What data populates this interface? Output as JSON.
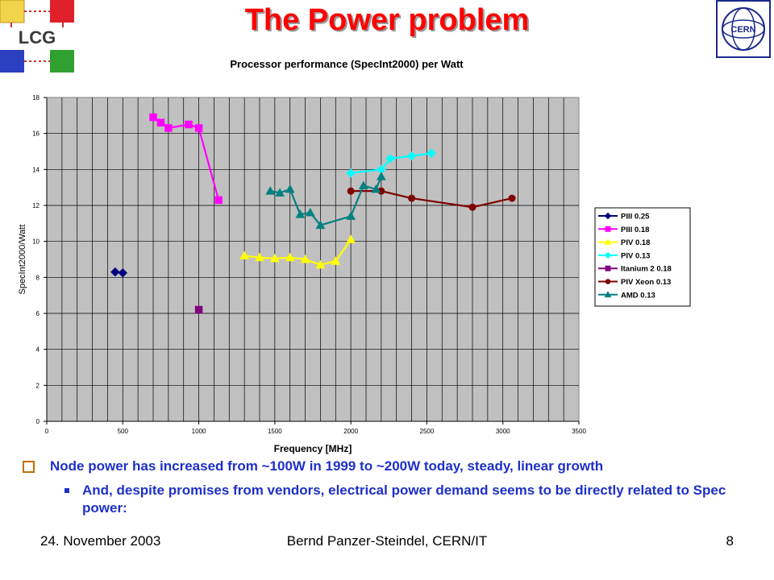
{
  "slide": {
    "title": "The Power problem",
    "logo_left_text": "LCG",
    "logo_right_text": "CERN"
  },
  "chart_data": {
    "type": "line",
    "title": "Processor performance (SpecInt2000) per Watt",
    "xlabel": "Frequency [MHz]",
    "ylabel": "SpecInt2000/Watt",
    "xlim": [
      0,
      3500
    ],
    "ylim": [
      0,
      18
    ],
    "x_ticks": [
      0,
      500,
      1000,
      1500,
      2000,
      2500,
      3000,
      3500
    ],
    "y_ticks": [
      0,
      2,
      4,
      6,
      8,
      10,
      12,
      14,
      16,
      18
    ],
    "grid": true,
    "background": "#c0c0c0",
    "legend_position": "right",
    "series": [
      {
        "name": "PIII 0.25",
        "color": "#000080",
        "marker": "diamond",
        "x": [
          450,
          500
        ],
        "y": [
          8.3,
          8.25
        ]
      },
      {
        "name": "PIII 0.18",
        "color": "#ff00ff",
        "marker": "square",
        "x": [
          700,
          750,
          800,
          933,
          1000,
          1130
        ],
        "y": [
          16.9,
          16.6,
          16.3,
          16.5,
          16.3,
          12.3
        ]
      },
      {
        "name": "PIV 0.18",
        "color": "#ffff00",
        "marker": "triangle",
        "x": [
          1300,
          1400,
          1500,
          1600,
          1700,
          1800,
          1900,
          2000
        ],
        "y": [
          9.2,
          9.1,
          9.05,
          9.1,
          9.0,
          8.7,
          8.9,
          10.1
        ]
      },
      {
        "name": "PIV 0.13",
        "color": "#00ffff",
        "marker": "diamond",
        "x": [
          2000,
          2200,
          2260,
          2400,
          2530
        ],
        "y": [
          13.8,
          14.0,
          14.6,
          14.75,
          14.9
        ]
      },
      {
        "name": "Itanium 2 0.18",
        "color": "#800080",
        "marker": "square",
        "x": [
          1000
        ],
        "y": [
          6.2
        ]
      },
      {
        "name": "PIV Xeon 0.13",
        "color": "#800000",
        "marker": "circle",
        "x": [
          2000,
          2200,
          2400,
          2800,
          3060
        ],
        "y": [
          12.8,
          12.8,
          12.4,
          11.9,
          12.4
        ]
      },
      {
        "name": "AMD 0.13",
        "color": "#008080",
        "marker": "triangle",
        "x": [
          1470,
          1533,
          1600,
          1667,
          1733,
          1800,
          2000,
          2083,
          2166,
          2200
        ],
        "y": [
          12.8,
          12.7,
          12.9,
          11.5,
          11.6,
          10.9,
          11.4,
          13.1,
          12.9,
          13.6
        ]
      }
    ]
  },
  "bullets": {
    "main": "Node power has increased from ~100W in 1999 to ~200W today, steady, linear growth",
    "sub": "And, despite promises from vendors, electrical power demand seems to be directly related to Spec power:"
  },
  "footer": {
    "date": "24. November 2003",
    "author": "Bernd Panzer-Steindel, CERN/IT",
    "page": "8"
  }
}
